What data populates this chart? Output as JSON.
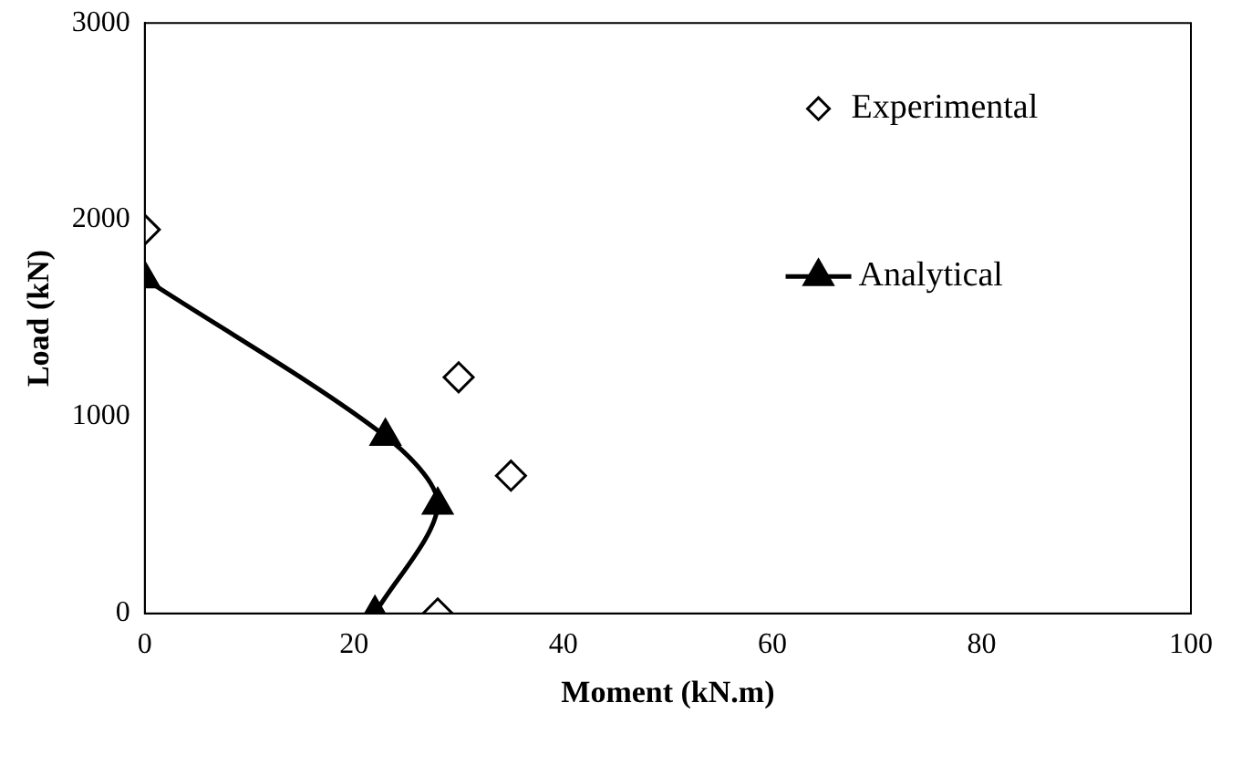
{
  "chart_data": {
    "type": "scatter",
    "xlabel": "Moment (kN.m)",
    "ylabel": "Load (kN)",
    "xlim": [
      0,
      100
    ],
    "xticks": [
      0,
      20,
      40,
      60,
      80,
      100
    ],
    "ylim": [
      0,
      3000
    ],
    "yticks": [
      0,
      1000,
      2000,
      3000
    ],
    "grid": false,
    "legend": "top right",
    "series": [
      {
        "name": "Experimental",
        "type": "scatter",
        "marker": "diamond",
        "color": "#000000",
        "x": [
          0,
          30,
          35,
          28
        ],
        "values": [
          1950,
          1200,
          700,
          0
        ]
      },
      {
        "name": "Analytical",
        "type": "line",
        "marker": "triangle",
        "line_style": "solid",
        "color": "#000000",
        "x": [
          0,
          23,
          28,
          22
        ],
        "values": [
          1700,
          900,
          550,
          0
        ]
      }
    ]
  }
}
